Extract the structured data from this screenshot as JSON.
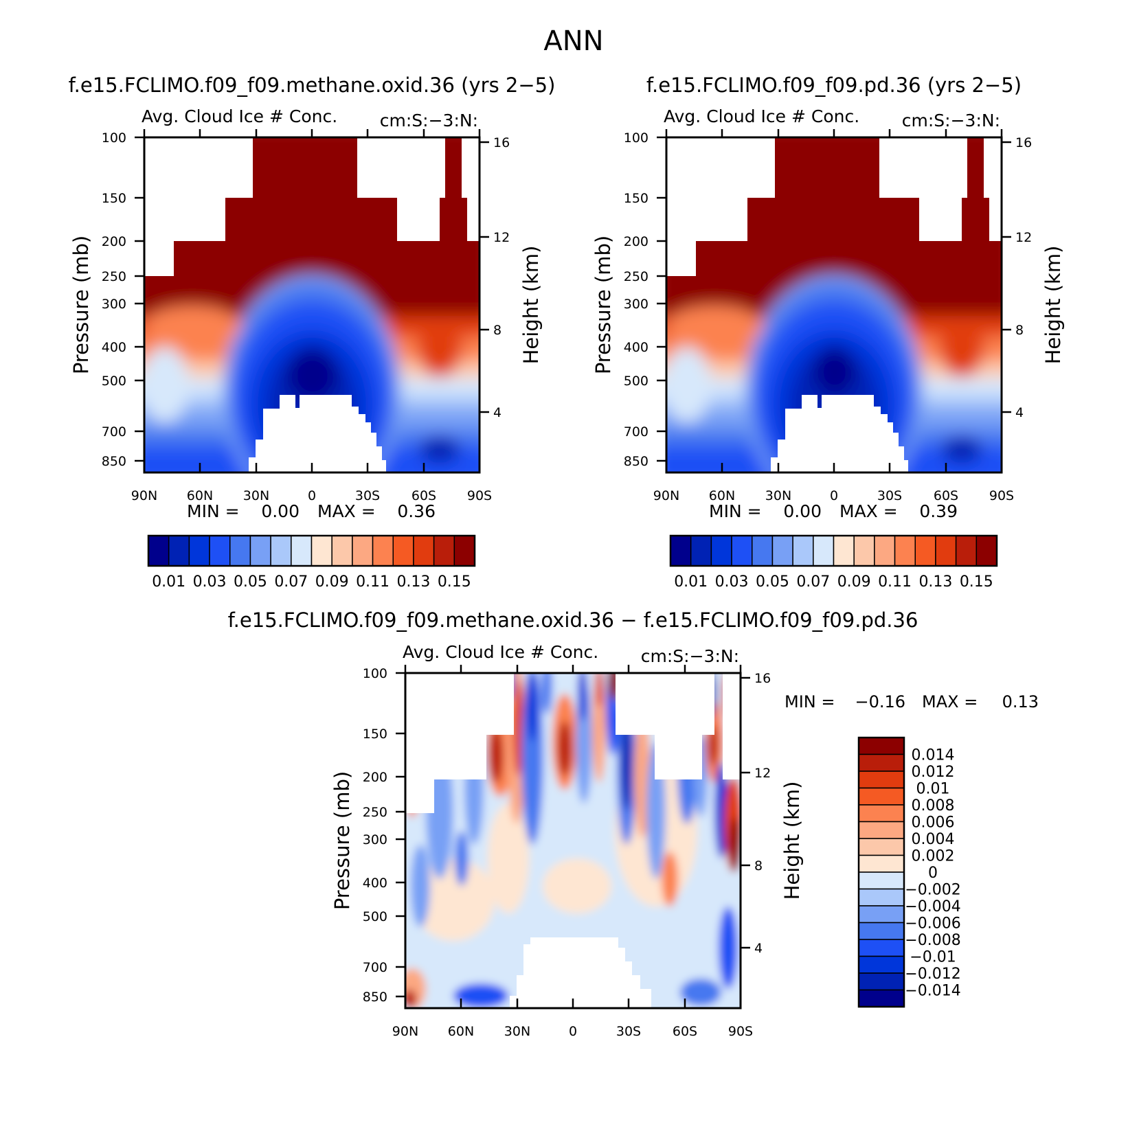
{
  "figure_title": "ANN",
  "chart_data": [
    {
      "type": "heatmap",
      "id": "p1",
      "title": "f.e15.FCLIMO.f09_f09.methane.oxid.36 (yrs 2−5)",
      "left_label": "Avg. Cloud Ice # Conc.",
      "right_label": "cm:S:−3:N:",
      "ylabel": "Pressure (mb)",
      "ylabel_right": "Height (km)",
      "x_ticks": [
        "90N",
        "60N",
        "30N",
        "0",
        "30S",
        "60S",
        "90S"
      ],
      "y_ticks": [
        "100",
        "150",
        "200",
        "250",
        "300",
        "400",
        "500",
        "700",
        "850"
      ],
      "height_ticks": [
        "16",
        "12",
        "8",
        "4"
      ],
      "stats": {
        "min_label": "MIN =",
        "min": "0.00",
        "max_label": "MAX =",
        "max": "0.36"
      },
      "colorbar_labels": [
        "0.01",
        "0.03",
        "0.05",
        "0.07",
        "0.09",
        "0.11",
        "0.13",
        "0.15"
      ],
      "colors": [
        "#00008c",
        "#0022b4",
        "#0036da",
        "#1e50f5",
        "#4678f0",
        "#78a0f5",
        "#aac8fa",
        "#d7e8fb",
        "#fee6d2",
        "#fcc8aa",
        "#fca882",
        "#fc8250",
        "#f55a23",
        "#e13c0f",
        "#b91e0a",
        "#8c0000"
      ]
    },
    {
      "type": "heatmap",
      "id": "p2",
      "title": "f.e15.FCLIMO.f09_f09.pd.36 (yrs 2−5)",
      "left_label": "Avg. Cloud Ice # Conc.",
      "right_label": "cm:S:−3:N:",
      "ylabel": "Pressure (mb)",
      "ylabel_right": "Height (km)",
      "x_ticks": [
        "90N",
        "60N",
        "30N",
        "0",
        "30S",
        "60S",
        "90S"
      ],
      "y_ticks": [
        "100",
        "150",
        "200",
        "250",
        "300",
        "400",
        "500",
        "700",
        "850"
      ],
      "height_ticks": [
        "16",
        "12",
        "8",
        "4"
      ],
      "stats": {
        "min_label": "MIN =",
        "min": "0.00",
        "max_label": "MAX =",
        "max": "0.39"
      },
      "colorbar_labels": [
        "0.01",
        "0.03",
        "0.05",
        "0.07",
        "0.09",
        "0.11",
        "0.13",
        "0.15"
      ],
      "colors": [
        "#00008c",
        "#0022b4",
        "#0036da",
        "#1e50f5",
        "#4678f0",
        "#78a0f5",
        "#aac8fa",
        "#d7e8fb",
        "#fee6d2",
        "#fcc8aa",
        "#fca882",
        "#fc8250",
        "#f55a23",
        "#e13c0f",
        "#b91e0a",
        "#8c0000"
      ]
    },
    {
      "type": "heatmap",
      "id": "p3",
      "title": "f.e15.FCLIMO.f09_f09.methane.oxid.36 − f.e15.FCLIMO.f09_f09.pd.36",
      "left_label": "Avg. Cloud Ice # Conc.",
      "right_label": "cm:S:−3:N:",
      "ylabel": "Pressure (mb)",
      "ylabel_right": "Height (km)",
      "x_ticks": [
        "90N",
        "60N",
        "30N",
        "0",
        "30S",
        "60S",
        "90S"
      ],
      "y_ticks": [
        "100",
        "150",
        "200",
        "250",
        "300",
        "400",
        "500",
        "700",
        "850"
      ],
      "height_ticks": [
        "16",
        "12",
        "8",
        "4"
      ],
      "stats": {
        "min_label": "MIN =",
        "min": "−0.16",
        "max_label": "MAX =",
        "max": "0.13"
      },
      "colorbar_labels": [
        "0.014",
        "0.012",
        "0.01",
        "0.008",
        "0.006",
        "0.004",
        "0.002",
        "0",
        "−0.002",
        "−0.004",
        "−0.006",
        "−0.008",
        "−0.01",
        "−0.012",
        "−0.014"
      ],
      "colors": [
        "#8c0000",
        "#b91e0a",
        "#e13c0f",
        "#f55a23",
        "#fc8250",
        "#fca882",
        "#fcc8aa",
        "#fee6d2",
        "#d7e8fb",
        "#aac8fa",
        "#78a0f5",
        "#4678f0",
        "#1e50f5",
        "#0036da",
        "#0022b4",
        "#00008c"
      ]
    }
  ]
}
